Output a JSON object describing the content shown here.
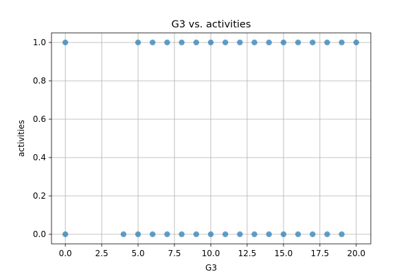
{
  "chart_data": {
    "type": "scatter",
    "title": "G3 vs. activities",
    "xlabel": "G3",
    "ylabel": "activities",
    "xlim": [
      -0.95,
      21.0
    ],
    "ylim": [
      -0.05,
      1.05
    ],
    "xticks": [
      0.0,
      2.5,
      5.0,
      7.5,
      10.0,
      12.5,
      15.0,
      17.5,
      20.0
    ],
    "xtick_labels": [
      "0.0",
      "2.5",
      "5.0",
      "7.5",
      "10.0",
      "12.5",
      "15.0",
      "17.5",
      "20.0"
    ],
    "yticks": [
      0.0,
      0.2,
      0.4,
      0.6,
      0.8,
      1.0
    ],
    "ytick_labels": [
      "0.0",
      "0.2",
      "0.4",
      "0.6",
      "0.8",
      "1.0"
    ],
    "grid": true,
    "marker_color": "#1f77b4",
    "marker_alpha": 0.7,
    "points": [
      {
        "x": 0,
        "y": 1
      },
      {
        "x": 5,
        "y": 1
      },
      {
        "x": 6,
        "y": 1
      },
      {
        "x": 7,
        "y": 1
      },
      {
        "x": 8,
        "y": 1
      },
      {
        "x": 9,
        "y": 1
      },
      {
        "x": 10,
        "y": 1
      },
      {
        "x": 11,
        "y": 1
      },
      {
        "x": 12,
        "y": 1
      },
      {
        "x": 13,
        "y": 1
      },
      {
        "x": 14,
        "y": 1
      },
      {
        "x": 15,
        "y": 1
      },
      {
        "x": 16,
        "y": 1
      },
      {
        "x": 17,
        "y": 1
      },
      {
        "x": 18,
        "y": 1
      },
      {
        "x": 19,
        "y": 1
      },
      {
        "x": 20,
        "y": 1
      },
      {
        "x": 0,
        "y": 0
      },
      {
        "x": 4,
        "y": 0
      },
      {
        "x": 5,
        "y": 0
      },
      {
        "x": 6,
        "y": 0
      },
      {
        "x": 7,
        "y": 0
      },
      {
        "x": 8,
        "y": 0
      },
      {
        "x": 9,
        "y": 0
      },
      {
        "x": 10,
        "y": 0
      },
      {
        "x": 11,
        "y": 0
      },
      {
        "x": 12,
        "y": 0
      },
      {
        "x": 13,
        "y": 0
      },
      {
        "x": 14,
        "y": 0
      },
      {
        "x": 15,
        "y": 0
      },
      {
        "x": 16,
        "y": 0
      },
      {
        "x": 17,
        "y": 0
      },
      {
        "x": 18,
        "y": 0
      },
      {
        "x": 19,
        "y": 0
      }
    ]
  }
}
